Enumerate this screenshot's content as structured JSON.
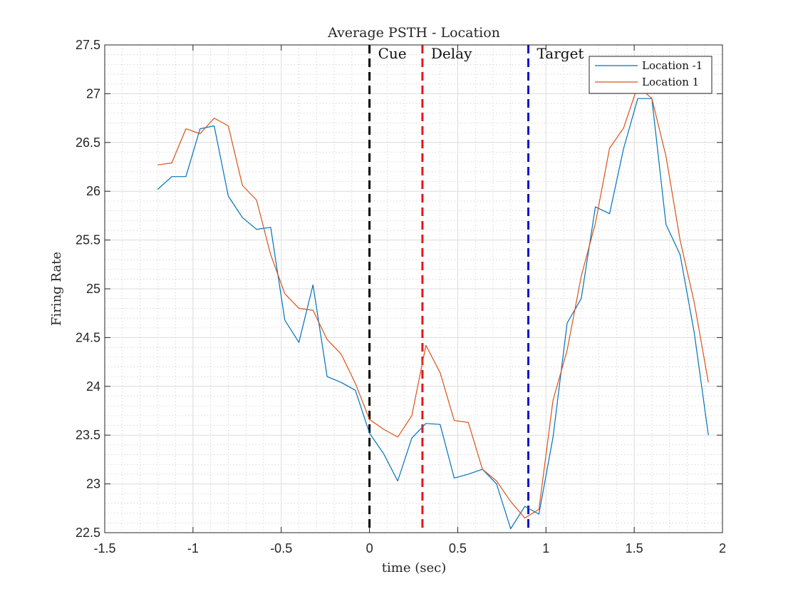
{
  "chart_data": {
    "type": "line",
    "title": "Average PSTH - Location",
    "xlabel": "time (sec)",
    "ylabel": "Firing Rate",
    "xlim": [
      -1.5,
      2
    ],
    "ylim": [
      22.5,
      27.5
    ],
    "xticks": [
      -1.5,
      -1,
      -0.5,
      0,
      0.5,
      1,
      1.5,
      2
    ],
    "xtick_labels": [
      "-1.5",
      "-1",
      "-0.5",
      "0",
      "0.5",
      "1",
      "1.5",
      "2"
    ],
    "yticks": [
      22.5,
      23,
      23.5,
      24,
      24.5,
      25,
      25.5,
      26,
      26.5,
      27,
      27.5
    ],
    "ytick_labels": [
      "22.5",
      "23",
      "23.5",
      "24",
      "24.5",
      "25",
      "25.5",
      "26",
      "26.5",
      "27",
      "27.5"
    ],
    "grid": true,
    "minor_grid": true,
    "legend_position": "top-right",
    "x": [
      -1.2,
      -1.12,
      -1.04,
      -0.96,
      -0.88,
      -0.8,
      -0.72,
      -0.64,
      -0.56,
      -0.48,
      -0.4,
      -0.32,
      -0.24,
      -0.16,
      -0.08,
      0.0,
      0.08,
      0.16,
      0.24,
      0.32,
      0.4,
      0.48,
      0.56,
      0.64,
      0.72,
      0.8,
      0.88,
      0.96,
      1.04,
      1.12,
      1.2,
      1.28,
      1.36,
      1.44,
      1.52,
      1.6,
      1.68,
      1.76,
      1.84,
      1.92
    ],
    "series": [
      {
        "name": "Location -1",
        "color": "#0072BD",
        "values": [
          26.02,
          26.15,
          26.15,
          26.64,
          26.67,
          25.95,
          25.73,
          25.61,
          25.63,
          24.68,
          24.45,
          25.04,
          24.1,
          24.04,
          23.96,
          23.52,
          23.31,
          23.03,
          23.47,
          23.62,
          23.61,
          23.06,
          23.1,
          23.15,
          23.0,
          22.54,
          22.77,
          22.69,
          23.48,
          24.65,
          24.9,
          25.84,
          25.77,
          26.44,
          26.95,
          26.95,
          25.66,
          25.35,
          24.55,
          23.5
        ]
      },
      {
        "name": "Location 1",
        "color": "#D95319",
        "values": [
          26.27,
          26.29,
          26.64,
          26.59,
          26.75,
          26.67,
          26.06,
          25.91,
          25.35,
          24.95,
          24.8,
          24.78,
          24.48,
          24.33,
          24.03,
          23.66,
          23.56,
          23.48,
          23.7,
          24.42,
          24.14,
          23.65,
          23.63,
          23.15,
          23.03,
          22.82,
          22.65,
          22.74,
          23.86,
          24.37,
          25.13,
          25.67,
          26.44,
          26.65,
          27.08,
          26.95,
          26.36,
          25.5,
          24.86,
          24.04
        ]
      }
    ],
    "events": [
      {
        "x": 0.0,
        "label": "Cue",
        "color": "#000000"
      },
      {
        "x": 0.3,
        "label": "Delay",
        "color": "#E8141B"
      },
      {
        "x": 0.9,
        "label": "Target",
        "color": "#0A14C8"
      }
    ]
  }
}
